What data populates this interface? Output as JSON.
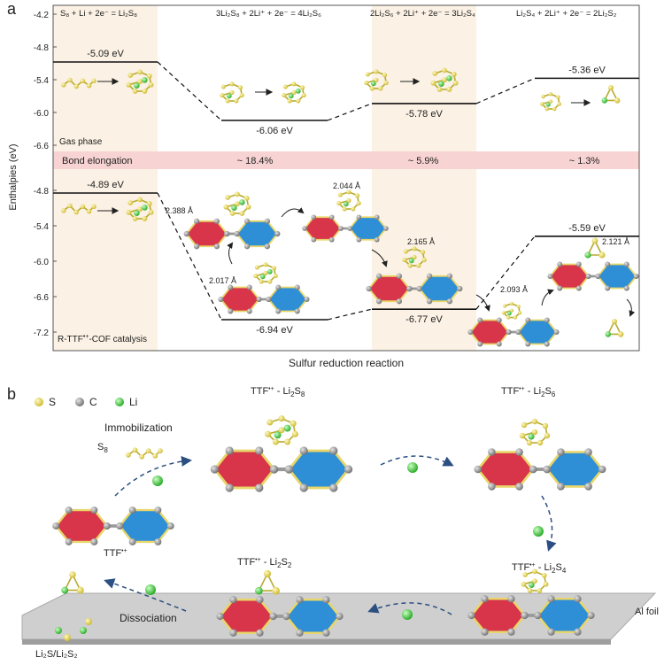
{
  "panel_a": {
    "label": "a",
    "y_axis_label": "Enthalpies (eV)",
    "x_axis_label": "Sulfur reduction reaction",
    "upper_ticks": [
      "-4.2",
      "-4.8",
      "-5.4",
      "-6.0",
      "-6.6"
    ],
    "lower_ticks": [
      "-4.8",
      "-5.4",
      "-6.0",
      "-6.6",
      "-7.2"
    ],
    "reactions": [
      {
        "pre": "S",
        "s1": "8",
        "mid": " + Li + 2e",
        "sup": "−",
        "post": " = Li",
        "s2": "2",
        "post2": "S",
        "s3": "8"
      },
      {
        "pre": "3Li",
        "s1": "2",
        "mid": "S",
        "sup": "",
        "post": "8",
        "s2": "",
        "post2": " + 2Li⁺ + 2e⁻ = 4Li₂S₆",
        "s3": ""
      },
      {
        "pre": "2Li",
        "s1": "2",
        "mid": "S",
        "sup": "",
        "post": "6",
        "s2": "",
        "post2": " + 2Li⁺ + 2e⁻ = 3Li₂S₄",
        "s3": ""
      },
      {
        "pre": "Li",
        "s1": "2",
        "mid": "S",
        "sup": "",
        "post": "4",
        "s2": "",
        "post2": " + 2Li⁺ + 2e⁻ = 2Li₂S₂",
        "s3": ""
      }
    ],
    "reaction_texts": [
      "S₈ + Li + 2e⁻ = Li₂S₈",
      "3Li₂S₈ + 2Li⁺ + 2e⁻ = 4Li₂S₆",
      "2Li₂S₆ + 2Li⁺ + 2e⁻ = 3Li₂S₄",
      "Li₂S₄ + 2Li⁺ + 2e⁻ = 2Li₂S₂"
    ],
    "gas_phase": {
      "label": "Gas phase",
      "energies_ev": [
        -5.09,
        -6.06,
        -5.78,
        -5.36
      ],
      "energy_labels": [
        "-5.09 eV",
        "-6.06 eV",
        "-5.78 eV",
        "-5.36 eV"
      ]
    },
    "bond_elongation": {
      "label": "Bond elongation",
      "values": [
        "~ 18.4%",
        "~ 5.9%",
        "~ 1.3%"
      ]
    },
    "catalysis": {
      "label_prefix": "R-TTF",
      "label_sup": "•+",
      "label_suffix": "-COF catalysis",
      "energies_ev": [
        -4.89,
        -6.94,
        -6.77,
        -5.59
      ],
      "energy_labels": [
        "-4.89 eV",
        "-6.94 eV",
        "-6.77 eV",
        "-5.59 eV"
      ],
      "bond_lengths": [
        "2.388 Å",
        "2.017 Å",
        "2.044 Å",
        "2.165 Å",
        "2.093 Å",
        "2.121 Å"
      ]
    },
    "colors": {
      "sulfur": "#e3d94a",
      "lithium": "#3ccc3c",
      "carbon": "#8a8a8a",
      "red_ring": "#d9354a",
      "blue_ring": "#2f8fd6",
      "shade": "#fbf1e4",
      "band": "#f8d3d3"
    }
  },
  "panel_b": {
    "label": "b",
    "legend": [
      {
        "label": "S",
        "element": "sulfur"
      },
      {
        "label": "C",
        "element": "carbon"
      },
      {
        "label": "Li",
        "element": "lithium"
      }
    ],
    "immobilization": "Immobilization",
    "s8_main": "S",
    "s8_sub": "8",
    "ttf_label": "TTF",
    "ttf_sup": "•+",
    "state_titles": [
      {
        "main": "TTF",
        "sup": "•+",
        "mid": " - Li",
        "s1": "2",
        "s": "S",
        "s2": "8"
      },
      {
        "main": "TTF",
        "sup": "•+",
        "mid": " - Li",
        "s1": "2",
        "s": "S",
        "s2": "6"
      },
      {
        "main": "TTF",
        "sup": "•+",
        "mid": " - Li",
        "s1": "2",
        "s": "S",
        "s2": "4"
      },
      {
        "main": "TTF",
        "sup": "•+",
        "mid": " - Li",
        "s1": "2",
        "s": "S",
        "s2": "2"
      }
    ],
    "dissociation": "Dissociation",
    "product_label": "Li₂S/Li₂S₂",
    "al_foil": "Al foil"
  }
}
